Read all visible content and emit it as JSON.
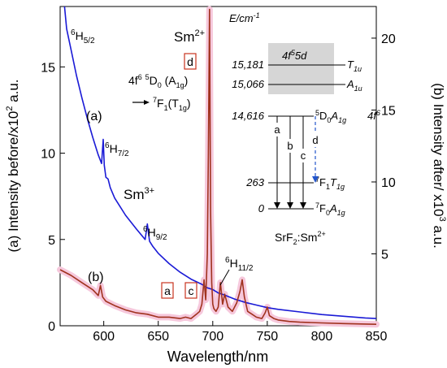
{
  "chart_data": {
    "type": "line",
    "xlabel": "Wavelength/nm",
    "ylabel_left": {
      "main": "(a) Intensity before/x10",
      "sup": "2",
      "unit": " a.u."
    },
    "ylabel_right": {
      "main": "(b) Intensity after/ x10",
      "sup": "3",
      "unit": " a.u."
    },
    "xlim": [
      560,
      850
    ],
    "ylim_left": [
      0,
      18.5
    ],
    "ylim_right": [
      0,
      22.2
    ],
    "x_ticks": [
      600,
      650,
      700,
      750,
      800,
      850
    ],
    "y_left_ticks": [
      0,
      5,
      10,
      15
    ],
    "y_right_ticks": [
      5,
      10,
      15,
      20
    ],
    "colors": {
      "a": "#1a1ad6",
      "b": "#a0321e",
      "b_highlight": "#f6c8dc",
      "level_box": "#d6d6d6",
      "accent": "#c8341e",
      "arrow_d": "#2255cc"
    },
    "series": [
      {
        "name": "(a)",
        "axis": "left",
        "x": [
          564,
          566,
          570,
          575,
          580,
          585,
          590,
          595,
          598,
          599.5,
          600.5,
          602,
          604,
          606,
          610,
          620,
          630,
          638,
          640,
          642,
          645,
          650,
          660,
          670,
          680,
          690,
          695,
          700,
          705,
          710,
          720,
          730,
          740,
          750,
          760,
          780,
          800,
          820,
          840,
          850
        ],
        "y": [
          18.5,
          17.2,
          16.0,
          14.5,
          13.2,
          12.0,
          10.9,
          9.9,
          9.4,
          10.8,
          9.3,
          8.6,
          8.5,
          8.0,
          7.4,
          6.4,
          5.6,
          5.0,
          5.9,
          4.9,
          4.6,
          4.2,
          3.6,
          3.1,
          2.7,
          2.4,
          2.2,
          2.1,
          1.9,
          1.8,
          1.55,
          1.35,
          1.2,
          1.05,
          0.95,
          0.8,
          0.65,
          0.55,
          0.45,
          0.42
        ]
      },
      {
        "name": "(b)",
        "axis": "right",
        "x": [
          560,
          570,
          580,
          590,
          595,
          597,
          599,
          602,
          610,
          620,
          630,
          640,
          650,
          660,
          670,
          675,
          680,
          685,
          688,
          690,
          692,
          693.5,
          695,
          696,
          697,
          698,
          699,
          700,
          701,
          703,
          705,
          707,
          709,
          711,
          714,
          718,
          722,
          725,
          727,
          729,
          732,
          736,
          740,
          745,
          748,
          750,
          752,
          756,
          760,
          770,
          780,
          800,
          820,
          840,
          850
        ],
        "y": [
          3.9,
          3.5,
          3.0,
          2.5,
          2.1,
          2.8,
          2.0,
          1.7,
          1.4,
          1.1,
          0.9,
          0.8,
          0.6,
          0.6,
          0.5,
          0.6,
          0.5,
          0.8,
          1.0,
          1.5,
          3.2,
          1.8,
          5.0,
          12.0,
          22.0,
          8.0,
          3.0,
          1.5,
          1.2,
          1.0,
          1.3,
          3.0,
          1.5,
          2.2,
          1.3,
          1.0,
          1.6,
          2.4,
          3.2,
          2.0,
          1.0,
          0.8,
          0.6,
          0.5,
          0.9,
          1.3,
          0.7,
          0.5,
          0.4,
          0.3,
          0.25,
          0.2,
          0.15,
          0.12,
          0.1
        ]
      }
    ],
    "annotations": {
      "h52": {
        "main": "6",
        "t": "H",
        "sub": "5/2"
      },
      "h72": {
        "main": "6",
        "t": "H",
        "sub": "7/2"
      },
      "h92": {
        "main": "6",
        "t": "H",
        "sub": "9/2"
      },
      "h112": {
        "main": "6",
        "t": "H",
        "sub": "11/2"
      },
      "sm3": {
        "t": "Sm",
        "sup": "3+"
      },
      "sm2": {
        "t": "Sm",
        "sup": "2+"
      },
      "label_a": "(a)",
      "label_b": "(b)",
      "box_d": "d",
      "box_a": "a",
      "box_c": "c",
      "trans_line1": {
        "t1": "4f",
        "s1": "6",
        "t2": " ",
        "s2": "5",
        "t3": "D",
        "sb": "0",
        "t4": " (A",
        "sb2": "1g",
        "t5": ")"
      },
      "trans_line2": {
        "s1": "7",
        "t1": "F",
        "sb": "1",
        "t2": "(T",
        "sb2": "1g",
        "t3": ")"
      }
    },
    "levels": {
      "e_label": {
        "t": "E/cm",
        "sup": "-1"
      },
      "config": {
        "t": "4f",
        "sup": "5",
        "t2": "5d"
      },
      "f6": {
        "t": "4f",
        "sup": "6"
      },
      "rows": [
        {
          "energy": "15,181",
          "sym": "T",
          "sub": "1u"
        },
        {
          "energy": "15,066",
          "sym": "A",
          "sub": "1u"
        },
        {
          "energy": "14,616",
          "pre": "5",
          "sym": "D",
          "sub0": "0",
          "sym2": "A",
          "sub": "1g"
        },
        {
          "energy": "263",
          "pre": "7",
          "sym": "F",
          "sub0": "1",
          "sym2": "T",
          "sub": "1g"
        },
        {
          "energy": "0",
          "pre": "7",
          "sym": "F",
          "sub0": "0",
          "sym2": "A",
          "sub": "1g"
        }
      ],
      "arrows": [
        "a",
        "b",
        "c",
        "d"
      ],
      "host": {
        "t": "SrF",
        "sub": "2",
        "t2": ":Sm",
        "sup": "2+"
      }
    }
  }
}
